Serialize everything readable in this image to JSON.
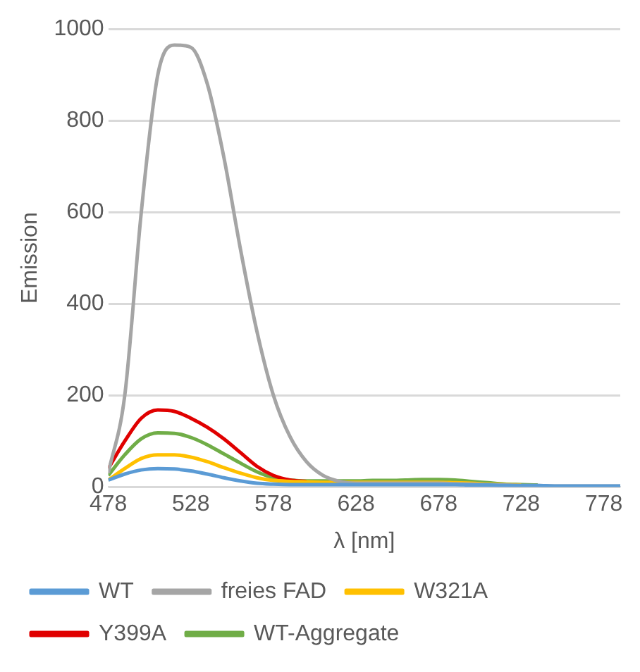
{
  "chart_data": {
    "type": "line",
    "xlabel": "λ [nm]",
    "ylabel": "Emission",
    "x": [
      478,
      488,
      498,
      508,
      518,
      528,
      538,
      548,
      558,
      568,
      578,
      588,
      598,
      608,
      618,
      628,
      638,
      648,
      658,
      668,
      678,
      688,
      698,
      708,
      718,
      728,
      738,
      748,
      758,
      768,
      778,
      788
    ],
    "xlim": [
      478,
      788
    ],
    "xticks": [
      478,
      528,
      578,
      628,
      678,
      728,
      778
    ],
    "ylim": [
      0,
      1000
    ],
    "yticks": [
      0,
      200,
      400,
      600,
      800,
      1000
    ],
    "grid": "y",
    "legend": "bottom",
    "marker": "none",
    "line_style": "solid",
    "series": [
      {
        "name": "WT",
        "color": "#5b9bd5",
        "values": [
          15,
          28,
          37,
          40,
          39,
          35,
          28,
          20,
          13,
          8,
          6,
          5,
          5,
          5,
          5,
          5,
          5,
          5,
          5,
          5,
          5,
          5,
          4,
          4,
          3,
          3,
          3,
          2,
          2,
          2,
          2,
          2
        ]
      },
      {
        "name": "freies FAD",
        "color": "#a5a5a5",
        "values": [
          30,
          200,
          600,
          900,
          965,
          960,
          880,
          720,
          520,
          340,
          200,
          110,
          55,
          25,
          12,
          8,
          8,
          8,
          8,
          8,
          8,
          7,
          6,
          5,
          4,
          3,
          3,
          2,
          2,
          2,
          2,
          2
        ]
      },
      {
        "name": "W321A",
        "color": "#ffc000",
        "values": [
          15,
          40,
          62,
          70,
          70,
          65,
          55,
          42,
          30,
          20,
          14,
          12,
          11,
          10,
          10,
          10,
          10,
          10,
          10,
          10,
          10,
          9,
          8,
          6,
          5,
          4,
          null,
          null,
          null,
          null,
          null,
          null
        ]
      },
      {
        "name": "Y399A",
        "color": "#e00000",
        "values": [
          40,
          100,
          150,
          168,
          165,
          150,
          130,
          105,
          75,
          45,
          25,
          15,
          12,
          null,
          null,
          null,
          null,
          null,
          null,
          null,
          null,
          null,
          null,
          null,
          null,
          null,
          null,
          null,
          null,
          null,
          null,
          null
        ]
      },
      {
        "name": "WT-Aggregate",
        "color": "#70ad47",
        "values": [
          25,
          70,
          105,
          118,
          117,
          108,
          92,
          72,
          52,
          33,
          20,
          15,
          13,
          13,
          13,
          13,
          14,
          14,
          15,
          16,
          16,
          15,
          12,
          9,
          6,
          5,
          4,
          null,
          null,
          null,
          null,
          null
        ]
      }
    ]
  }
}
